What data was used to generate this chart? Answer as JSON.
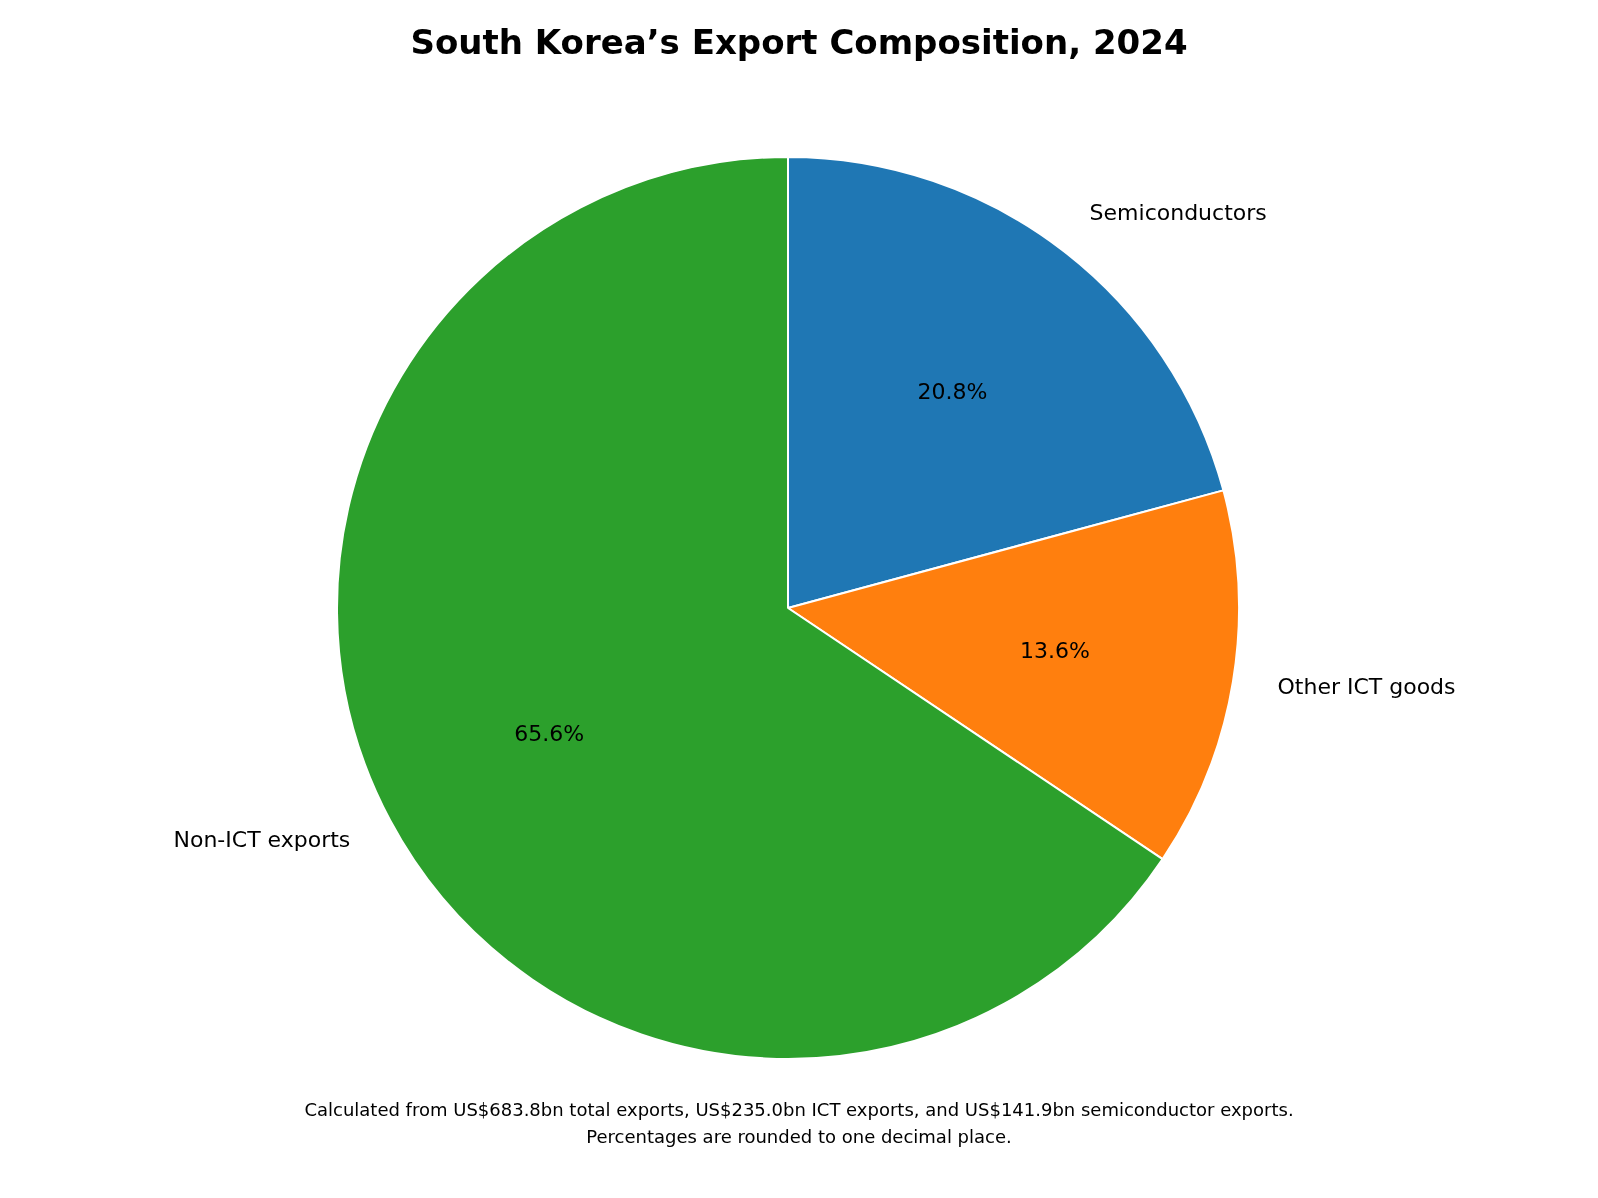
{
  "chart_data": {
    "type": "pie",
    "title": "South Korea’s Export Composition, 2024",
    "categories": [
      "Semiconductors",
      "Other ICT goods",
      "Non-ICT exports"
    ],
    "values": [
      20.8,
      13.6,
      65.6
    ],
    "colors": [
      "#1f77b4",
      "#ff7f0e",
      "#2ca02c"
    ],
    "value_labels": [
      "20.8%",
      "13.6%",
      "65.6%"
    ],
    "legend": false,
    "annotations": [
      "Calculated from US$683.8bn total exports, US$235.0bn ICT exports, and US$141.9bn semiconductor exports.",
      "Percentages are rounded to one decimal place."
    ]
  }
}
